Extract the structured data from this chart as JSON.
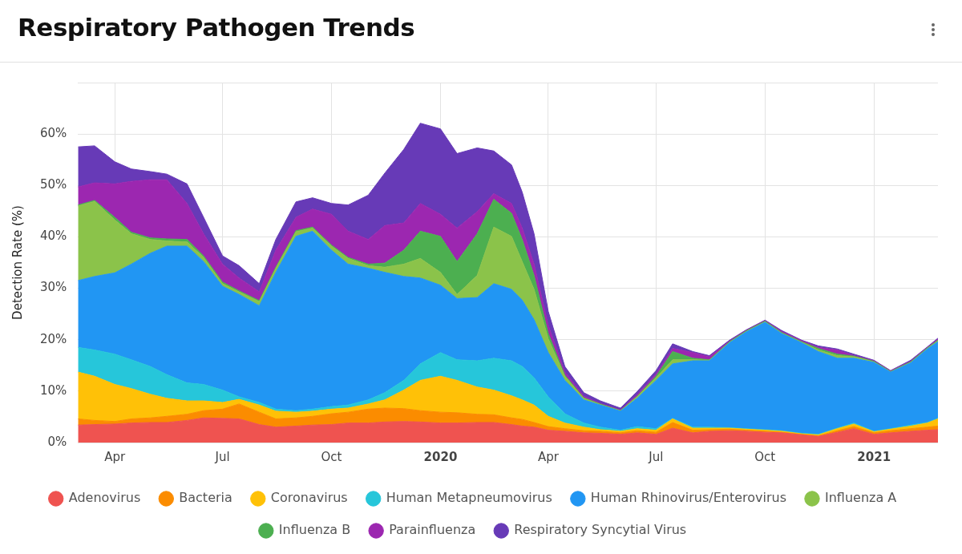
{
  "chart_data": {
    "type": "area",
    "title": "Respiratory Pathogen Trends",
    "ylabel": "Detection Rate (%)",
    "stacked": true,
    "grid": true,
    "legend": "bottom",
    "marker": "none",
    "x": [
      "2019-03-01",
      "2019-03-15",
      "2019-04-01",
      "2019-04-15",
      "2019-05-01",
      "2019-05-15",
      "2019-06-01",
      "2019-06-15",
      "2019-07-01",
      "2019-07-15",
      "2019-08-01",
      "2019-08-15",
      "2019-09-01",
      "2019-09-15",
      "2019-10-01",
      "2019-10-15",
      "2019-11-01",
      "2019-11-15",
      "2019-12-01",
      "2019-12-15",
      "2020-01-01",
      "2020-01-15",
      "2020-02-01",
      "2020-02-15",
      "2020-03-01",
      "2020-03-10",
      "2020-03-20",
      "2020-04-01",
      "2020-04-15",
      "2020-05-01",
      "2020-05-15",
      "2020-06-01",
      "2020-06-15",
      "2020-07-01",
      "2020-07-15",
      "2020-08-01",
      "2020-08-15",
      "2020-09-01",
      "2020-09-15",
      "2020-10-01",
      "2020-10-15",
      "2020-11-01",
      "2020-11-15",
      "2020-12-01",
      "2020-12-15",
      "2021-01-01",
      "2021-01-15",
      "2021-02-01",
      "2021-02-15",
      "2021-02-24"
    ],
    "xlim": [
      "2019-03-01",
      "2021-02-24"
    ],
    "xticks": [
      {
        "value": "2019-04-01",
        "label": "Apr"
      },
      {
        "value": "2019-07-01",
        "label": "Jul"
      },
      {
        "value": "2019-10-01",
        "label": "Oct"
      },
      {
        "value": "2020-01-01",
        "label": "2020"
      },
      {
        "value": "2020-04-01",
        "label": "Apr"
      },
      {
        "value": "2020-07-01",
        "label": "Jul"
      },
      {
        "value": "2020-10-01",
        "label": "Oct"
      },
      {
        "value": "2021-01-01",
        "label": "2021"
      }
    ],
    "ylim": [
      0,
      70
    ],
    "yticks": [
      {
        "value": 0,
        "label": "0%"
      },
      {
        "value": 10,
        "label": "10%"
      },
      {
        "value": 20,
        "label": "20%"
      },
      {
        "value": 30,
        "label": "30%"
      },
      {
        "value": 40,
        "label": "40%"
      },
      {
        "value": 50,
        "label": "50%"
      },
      {
        "value": 60,
        "label": "60%"
      },
      {
        "value": 70,
        "label": null
      }
    ],
    "series": [
      {
        "name": "Adenovirus",
        "color": "#ef5350",
        "values": [
          3.4,
          3.5,
          3.6,
          3.8,
          3.9,
          3.9,
          4.3,
          4.8,
          4.7,
          4.6,
          3.5,
          3.0,
          3.2,
          3.4,
          3.5,
          3.8,
          3.8,
          4.0,
          4.1,
          4.0,
          3.8,
          3.8,
          3.9,
          3.9,
          3.5,
          3.2,
          3.0,
          2.4,
          2.2,
          1.9,
          1.8,
          1.6,
          1.9,
          1.6,
          2.8,
          1.9,
          2.2,
          2.3,
          2.2,
          2.0,
          1.9,
          1.5,
          1.2,
          2.0,
          2.7,
          1.6,
          1.9,
          2.2,
          2.4,
          2.5
        ]
      },
      {
        "name": "Bacteria",
        "color": "#fb8c00",
        "values": [
          1.2,
          0.8,
          0.5,
          0.8,
          0.9,
          1.2,
          1.2,
          1.4,
          1.8,
          2.9,
          2.4,
          1.6,
          1.6,
          1.7,
          2.1,
          2.1,
          2.7,
          2.7,
          2.5,
          2.2,
          2.1,
          2.0,
          1.6,
          1.5,
          1.3,
          1.3,
          0.9,
          0.7,
          0.5,
          0.4,
          0.4,
          0.3,
          0.4,
          0.4,
          1.1,
          0.5,
          0.3,
          0.3,
          0.2,
          0.2,
          0.1,
          0.1,
          0.1,
          0.3,
          0.4,
          0.3,
          0.4,
          0.5,
          0.6,
          0.7
        ]
      },
      {
        "name": "Coronavirus",
        "color": "#ffc107",
        "values": [
          9.1,
          8.6,
          7.2,
          5.9,
          4.6,
          3.5,
          2.6,
          1.9,
          1.3,
          0.9,
          1.4,
          1.5,
          1.1,
          1.0,
          0.9,
          0.8,
          1.0,
          1.6,
          3.6,
          5.9,
          7.0,
          6.3,
          5.3,
          4.8,
          4.3,
          3.8,
          3.4,
          2.0,
          1.1,
          0.7,
          0.3,
          0.3,
          0.4,
          0.4,
          0.7,
          0.4,
          0.3,
          0.2,
          0.2,
          0.2,
          0.2,
          0.1,
          0.2,
          0.4,
          0.5,
          0.2,
          0.3,
          0.5,
          0.8,
          1.4
        ]
      },
      {
        "name": "Human Metapneumovirus",
        "color": "#26c6da",
        "values": [
          4.8,
          5.1,
          5.9,
          5.6,
          5.4,
          4.6,
          3.5,
          3.2,
          2.4,
          0.5,
          0.5,
          0.4,
          0.3,
          0.4,
          0.5,
          0.6,
          0.8,
          1.4,
          1.9,
          3.2,
          4.6,
          4.0,
          5.1,
          6.2,
          6.8,
          6.5,
          5.3,
          3.8,
          1.8,
          0.8,
          0.5,
          0.2,
          0.4,
          0.3,
          0.1,
          0.2,
          0.2,
          0.1,
          0.1,
          0.1,
          0.1,
          0.1,
          0.1,
          0.1,
          0.2,
          0.1,
          0.1,
          0.2,
          0.1,
          0.1
        ]
      },
      {
        "name": "Human Rhinovirus/Enterovirus",
        "color": "#2196f3",
        "values": [
          13.0,
          14.3,
          15.8,
          18.6,
          22.0,
          25.0,
          26.6,
          23.9,
          20.2,
          19.9,
          18.8,
          26.6,
          33.9,
          34.6,
          30.4,
          27.4,
          25.6,
          23.4,
          20.2,
          16.7,
          13.1,
          11.9,
          12.3,
          14.5,
          13.9,
          12.9,
          11.3,
          8.6,
          6.5,
          4.5,
          4.3,
          3.7,
          5.5,
          9.4,
          10.6,
          12.9,
          12.9,
          16.5,
          18.8,
          20.9,
          18.9,
          17.6,
          16.1,
          13.6,
          12.6,
          13.4,
          11.0,
          12.1,
          14.3,
          14.9
        ]
      },
      {
        "name": "Influenza A",
        "color": "#8bc34a",
        "values": [
          14.5,
          14.6,
          10.3,
          5.9,
          2.7,
          1.0,
          0.8,
          0.8,
          0.5,
          0.5,
          0.8,
          0.8,
          0.9,
          0.6,
          0.8,
          1.1,
          0.5,
          1.0,
          2.4,
          3.8,
          2.5,
          0.8,
          4.3,
          11.0,
          10.3,
          7.5,
          5.9,
          2.7,
          0.8,
          0.3,
          0.1,
          0.1,
          0.3,
          0.5,
          0.8,
          0.2,
          0.1,
          0.1,
          0.1,
          0.1,
          0.1,
          0.1,
          0.3,
          0.5,
          0.3,
          0.1,
          0.1,
          0.1,
          0.1,
          0.2
        ]
      },
      {
        "name": "Influenza B",
        "color": "#4caf50",
        "values": [
          0.2,
          0.2,
          0.5,
          0.3,
          0.3,
          0.4,
          0.5,
          0.3,
          0.3,
          0.2,
          0.2,
          0.2,
          0.2,
          0.2,
          0.2,
          0.2,
          0.3,
          0.8,
          2.7,
          5.3,
          7.0,
          6.4,
          8.1,
          5.4,
          4.5,
          4.3,
          2.7,
          1.0,
          0.2,
          0.1,
          0.1,
          0.0,
          0.1,
          0.3,
          1.6,
          0.3,
          0.1,
          0.1,
          0.1,
          0.1,
          0.1,
          0.1,
          0.3,
          0.3,
          0.1,
          0.1,
          0.0,
          0.1,
          0.1,
          0.1
        ]
      },
      {
        "name": "Parainfluenza",
        "color": "#9c27b0",
        "values": [
          3.5,
          3.4,
          6.5,
          9.9,
          11.3,
          11.5,
          7.0,
          4.3,
          3.5,
          2.5,
          1.7,
          3.3,
          2.6,
          3.5,
          6.0,
          5.1,
          4.8,
          7.3,
          5.3,
          5.4,
          4.3,
          6.5,
          4.3,
          1.1,
          1.9,
          2.2,
          2.2,
          1.6,
          0.6,
          0.3,
          0.1,
          0.1,
          0.3,
          0.4,
          0.6,
          1.1,
          0.6,
          0.1,
          0.1,
          0.1,
          0.2,
          0.2,
          0.2,
          0.8,
          0.1,
          0.1,
          0.1,
          0.1,
          0.1,
          0.2
        ]
      },
      {
        "name": "Respiratory Syncytial Virus",
        "color": "#673ab7",
        "values": [
          7.8,
          7.2,
          4.3,
          2.4,
          1.6,
          1.1,
          3.8,
          3.2,
          1.6,
          2.4,
          1.6,
          2.1,
          3.0,
          2.2,
          2.1,
          5.1,
          8.6,
          10.2,
          14.3,
          15.6,
          16.6,
          14.5,
          12.4,
          8.3,
          7.5,
          7.0,
          5.9,
          2.7,
          1.1,
          0.7,
          0.5,
          0.4,
          0.6,
          0.7,
          0.9,
          0.2,
          0.2,
          0.2,
          0.1,
          0.1,
          0.2,
          0.1,
          0.3,
          0.2,
          0.3,
          0.1,
          0.1,
          0.2,
          0.1,
          0.2
        ]
      }
    ]
  }
}
